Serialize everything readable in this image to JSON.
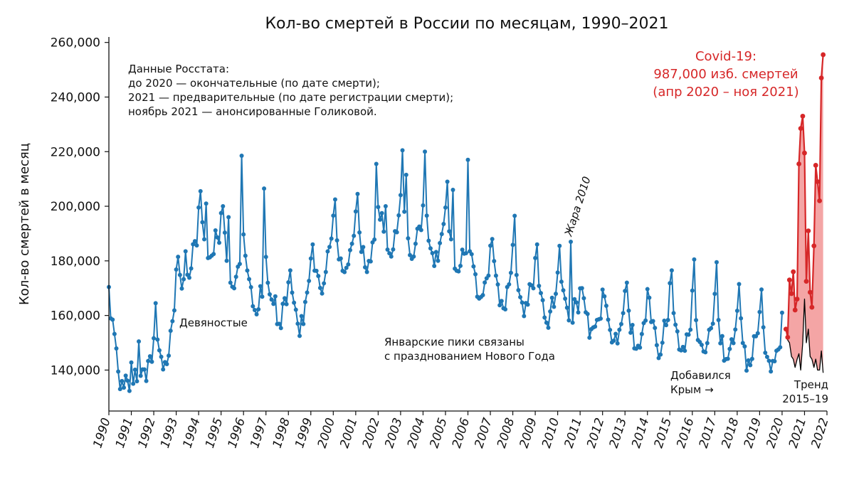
{
  "chart_data": {
    "type": "line",
    "title": "Кол-во смертей в России по месяцам, 1990–2021",
    "xlabel": "",
    "ylabel": "Кол-во смертей в месяц",
    "xlim": [
      1990,
      2022
    ],
    "ylim": [
      125000,
      262000
    ],
    "grid": false,
    "yticks": [
      140000,
      160000,
      180000,
      200000,
      220000,
      240000,
      260000
    ],
    "ytick_labels": [
      "140,000",
      "160,000",
      "180,000",
      "200,000",
      "220,000",
      "240,000",
      "260,000"
    ],
    "xticks": [
      1990,
      1991,
      1992,
      1993,
      1994,
      1995,
      1996,
      1997,
      1998,
      1999,
      2000,
      2001,
      2002,
      2003,
      2004,
      2005,
      2006,
      2007,
      2008,
      2009,
      2010,
      2011,
      2012,
      2013,
      2014,
      2015,
      2016,
      2017,
      2018,
      2019,
      2020,
      2021,
      2022
    ],
    "xtick_labels": [
      "1990",
      "1991",
      "1992",
      "1993",
      "1994",
      "1995",
      "1996",
      "1997",
      "1998",
      "1999",
      "2000",
      "2001",
      "2002",
      "2003",
      "2004",
      "2005",
      "2006",
      "2007",
      "2008",
      "2009",
      "2010",
      "2011",
      "2012",
      "2013",
      "2014",
      "2015",
      "2016",
      "2017",
      "2018",
      "2019",
      "2020",
      "2021",
      "2022"
    ],
    "series": [
      {
        "color": "#1f77b4",
        "start_year": 1990,
        "annual_points": [
          {
            "year": 1990.0,
            "value": 160500
          },
          {
            "year": 1990.5,
            "value": 140000
          },
          {
            "year": 1991.0,
            "value": 132000
          },
          {
            "year": 1991.5,
            "value": 143000
          },
          {
            "year": 1992.0,
            "value": 144000
          },
          {
            "year": 1992.5,
            "value": 146000
          },
          {
            "year": 1993.0,
            "value": 165000
          },
          {
            "year": 1993.5,
            "value": 178000
          },
          {
            "year": 1994.0,
            "value": 190000
          },
          {
            "year": 1994.5,
            "value": 187000
          },
          {
            "year": 1995.0,
            "value": 190000
          },
          {
            "year": 1995.5,
            "value": 176000
          },
          {
            "year": 1996.0,
            "value": 180000
          },
          {
            "year": 1996.5,
            "value": 166000
          },
          {
            "year": 1997.0,
            "value": 170000
          },
          {
            "year": 1997.5,
            "value": 160000
          },
          {
            "year": 1998.0,
            "value": 165000
          },
          {
            "year": 1998.5,
            "value": 160000
          },
          {
            "year": 1999.0,
            "value": 173000
          },
          {
            "year": 1999.5,
            "value": 176000
          },
          {
            "year": 2000.0,
            "value": 187000
          },
          {
            "year": 2000.5,
            "value": 180000
          },
          {
            "year": 2001.0,
            "value": 188000
          },
          {
            "year": 2001.5,
            "value": 182000
          },
          {
            "year": 2002.0,
            "value": 193000
          },
          {
            "year": 2002.5,
            "value": 186000
          },
          {
            "year": 2003.0,
            "value": 196000
          },
          {
            "year": 2003.5,
            "value": 188000
          },
          {
            "year": 2004.0,
            "value": 193000
          },
          {
            "year": 2004.5,
            "value": 184000
          },
          {
            "year": 2005.0,
            "value": 192000
          },
          {
            "year": 2005.5,
            "value": 180000
          },
          {
            "year": 2006.0,
            "value": 186000
          },
          {
            "year": 2006.5,
            "value": 170000
          },
          {
            "year": 2007.0,
            "value": 176000
          },
          {
            "year": 2007.5,
            "value": 168000
          },
          {
            "year": 2008.0,
            "value": 174000
          },
          {
            "year": 2008.5,
            "value": 166000
          },
          {
            "year": 2009.0,
            "value": 171000
          },
          {
            "year": 2009.5,
            "value": 162000
          },
          {
            "year": 2010.0,
            "value": 168000
          },
          {
            "year": 2010.5,
            "value": 165000
          },
          {
            "year": 2011.0,
            "value": 162000
          },
          {
            "year": 2011.5,
            "value": 158000
          },
          {
            "year": 2012.0,
            "value": 162000
          },
          {
            "year": 2012.5,
            "value": 155000
          },
          {
            "year": 2013.0,
            "value": 160000
          },
          {
            "year": 2013.5,
            "value": 152000
          },
          {
            "year": 2014.0,
            "value": 159000
          },
          {
            "year": 2014.5,
            "value": 151000
          },
          {
            "year": 2015.0,
            "value": 160000
          },
          {
            "year": 2015.5,
            "value": 151000
          },
          {
            "year": 2016.0,
            "value": 158000
          },
          {
            "year": 2016.5,
            "value": 150000
          },
          {
            "year": 2017.0,
            "value": 156000
          },
          {
            "year": 2017.5,
            "value": 148000
          },
          {
            "year": 2018.0,
            "value": 155000
          },
          {
            "year": 2018.5,
            "value": 146000
          },
          {
            "year": 2019.0,
            "value": 153000
          },
          {
            "year": 2019.5,
            "value": 145000
          },
          {
            "year": 2020.0,
            "value": 152000
          }
        ],
        "peaks": [
          {
            "year": 1991.3,
            "value": 150500
          },
          {
            "year": 1992.05,
            "value": 164500
          },
          {
            "year": 1993.1,
            "value": 181500
          },
          {
            "year": 1993.4,
            "value": 183500
          },
          {
            "year": 1994.05,
            "value": 205500
          },
          {
            "year": 1994.3,
            "value": 201000
          },
          {
            "year": 1995.05,
            "value": 200000
          },
          {
            "year": 1995.3,
            "value": 196000
          },
          {
            "year": 1995.95,
            "value": 218500
          },
          {
            "year": 1996.95,
            "value": 206500
          },
          {
            "year": 1997.4,
            "value": 167000
          },
          {
            "year": 1998.05,
            "value": 176500
          },
          {
            "year": 1999.05,
            "value": 186000
          },
          {
            "year": 2000.05,
            "value": 202500
          },
          {
            "year": 2001.05,
            "value": 204500
          },
          {
            "year": 2001.95,
            "value": 215500
          },
          {
            "year": 2002.3,
            "value": 200000
          },
          {
            "year": 2003.05,
            "value": 220500
          },
          {
            "year": 2003.25,
            "value": 211500
          },
          {
            "year": 2004.05,
            "value": 220000
          },
          {
            "year": 2005.05,
            "value": 209000
          },
          {
            "year": 2005.35,
            "value": 206000
          },
          {
            "year": 2006.0,
            "value": 217000
          },
          {
            "year": 2007.05,
            "value": 188000
          },
          {
            "year": 2008.05,
            "value": 196500
          },
          {
            "year": 2009.05,
            "value": 186000
          },
          {
            "year": 2010.05,
            "value": 185500
          },
          {
            "year": 2010.6,
            "value": 187000
          },
          {
            "year": 2011.05,
            "value": 170000
          },
          {
            "year": 2012.05,
            "value": 167000
          },
          {
            "year": 2013.05,
            "value": 172000
          },
          {
            "year": 2014.05,
            "value": 166500
          },
          {
            "year": 2015.05,
            "value": 176500
          },
          {
            "year": 2016.05,
            "value": 180500
          },
          {
            "year": 2017.05,
            "value": 179500
          },
          {
            "year": 2018.05,
            "value": 171500
          },
          {
            "year": 2019.05,
            "value": 169500
          },
          {
            "year": 2020.0,
            "value": 161000
          }
        ]
      },
      {
        "color": "#d62728",
        "points": [
          {
            "year": 2020.17,
            "value": 155000
          },
          {
            "year": 2020.25,
            "value": 152000
          },
          {
            "year": 2020.33,
            "value": 173000
          },
          {
            "year": 2020.42,
            "value": 168000
          },
          {
            "year": 2020.5,
            "value": 176000
          },
          {
            "year": 2020.58,
            "value": 162000
          },
          {
            "year": 2020.67,
            "value": 166000
          },
          {
            "year": 2020.75,
            "value": 215500
          },
          {
            "year": 2020.83,
            "value": 228500
          },
          {
            "year": 2020.92,
            "value": 233000
          },
          {
            "year": 2021.0,
            "value": 219500
          },
          {
            "year": 2021.08,
            "value": 172500
          },
          {
            "year": 2021.17,
            "value": 191000
          },
          {
            "year": 2021.25,
            "value": 168500
          },
          {
            "year": 2021.33,
            "value": 163000
          },
          {
            "year": 2021.42,
            "value": 185500
          },
          {
            "year": 2021.5,
            "value": 215000
          },
          {
            "year": 2021.58,
            "value": 209000
          },
          {
            "year": 2021.67,
            "value": 202000
          },
          {
            "year": 2021.75,
            "value": 247000
          },
          {
            "year": 2021.83,
            "value": 255500
          }
        ]
      },
      {
        "color": "#000000",
        "points": [
          {
            "year": 2020.17,
            "value": 155000
          },
          {
            "year": 2020.25,
            "value": 151000
          },
          {
            "year": 2020.33,
            "value": 150000
          },
          {
            "year": 2020.42,
            "value": 145000
          },
          {
            "year": 2020.5,
            "value": 144000
          },
          {
            "year": 2020.58,
            "value": 141000
          },
          {
            "year": 2020.67,
            "value": 144000
          },
          {
            "year": 2020.75,
            "value": 146000
          },
          {
            "year": 2020.83,
            "value": 140000
          },
          {
            "year": 2020.92,
            "value": 150000
          },
          {
            "year": 2021.0,
            "value": 166000
          },
          {
            "year": 2021.08,
            "value": 150000
          },
          {
            "year": 2021.17,
            "value": 155000
          },
          {
            "year": 2021.25,
            "value": 145000
          },
          {
            "year": 2021.33,
            "value": 144000
          },
          {
            "year": 2021.42,
            "value": 141000
          },
          {
            "year": 2021.5,
            "value": 144000
          },
          {
            "year": 2021.58,
            "value": 140000
          },
          {
            "year": 2021.67,
            "value": 140000
          },
          {
            "year": 2021.75,
            "value": 147000
          },
          {
            "year": 2021.83,
            "value": 139000
          }
        ]
      }
    ],
    "annotations": {
      "source_lines": [
        "Данные Росстата:",
        "до 2020 — окончательные (по дате смерти);",
        "2021 — предварительные (по дате регистрации смерти);",
        "ноябрь 2021 — анонсированные Голиковой."
      ],
      "nineties": "Девяностые",
      "january_lines": [
        "Январские пики связаны",
        "с празднованием Нового Года"
      ],
      "heat": "Жара 2010",
      "crimea_lines": [
        "Добавился",
        "Крым →"
      ],
      "trend_lines": [
        "Тренд",
        "2015–19"
      ],
      "covid_lines": [
        "Covid-19:",
        "987,000 изб. смертей",
        "(апр 2020 – ноя 2021)"
      ]
    }
  },
  "colors": {
    "main": "#1f77b4",
    "covid": "#d62728",
    "covid_fill": "#f4a5a5",
    "trend": "#000000"
  }
}
